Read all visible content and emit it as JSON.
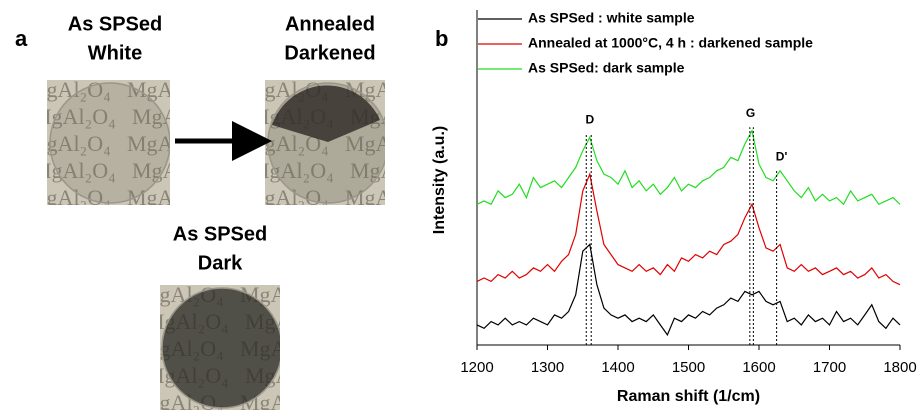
{
  "panel_a": {
    "label": "a",
    "samples": [
      {
        "lines": [
          "As SPSed",
          "White"
        ]
      },
      {
        "lines": [
          "Annealed",
          "Darkened"
        ]
      },
      {
        "lines": [
          "As SPSed",
          "Dark"
        ]
      }
    ],
    "photo_text": "MgAl₂O₄"
  },
  "chart_data": {
    "type": "line",
    "panel_label": "b",
    "xlabel": "Raman shift (1/cm)",
    "ylabel": "Intensity (a.u.)",
    "x": [
      1200,
      1210,
      1220,
      1230,
      1240,
      1250,
      1260,
      1270,
      1280,
      1290,
      1300,
      1310,
      1320,
      1330,
      1340,
      1350,
      1360,
      1370,
      1380,
      1390,
      1400,
      1410,
      1420,
      1430,
      1440,
      1450,
      1460,
      1470,
      1480,
      1490,
      1500,
      1510,
      1520,
      1530,
      1540,
      1550,
      1560,
      1570,
      1580,
      1590,
      1600,
      1610,
      1620,
      1630,
      1640,
      1650,
      1660,
      1670,
      1680,
      1690,
      1700,
      1710,
      1720,
      1730,
      1740,
      1750,
      1760,
      1770,
      1780,
      1790,
      1800
    ],
    "series": [
      {
        "name": "As SPSed : white sample",
        "color": "#000000",
        "values": [
          6,
          5,
          7,
          6,
          8,
          6,
          7,
          6,
          8,
          7,
          6,
          9,
          8,
          10,
          15,
          28,
          30,
          18,
          11,
          9,
          8,
          9,
          7,
          8,
          7,
          9,
          6,
          3,
          8,
          7,
          9,
          8,
          10,
          9,
          11,
          12,
          14,
          13,
          16,
          15,
          16,
          13,
          12,
          13,
          7,
          8,
          6,
          9,
          7,
          8,
          6,
          10,
          7,
          8,
          6,
          9,
          12,
          7,
          5,
          8,
          6
        ]
      },
      {
        "name": "Annealed at 1000°C, 4 h : darkened sample",
        "color": "#e00000",
        "values": [
          19,
          20,
          19,
          21,
          20,
          22,
          20,
          21,
          23,
          22,
          24,
          22,
          25,
          27,
          33,
          46,
          51,
          40,
          30,
          27,
          24,
          23,
          22,
          24,
          22,
          23,
          21,
          24,
          22,
          26,
          25,
          27,
          26,
          28,
          27,
          30,
          31,
          33,
          38,
          42,
          35,
          29,
          28,
          30,
          23,
          22,
          24,
          22,
          23,
          21,
          22,
          23,
          21,
          22,
          20,
          21,
          23,
          20,
          21,
          19,
          18
        ]
      },
      {
        "name": "As SPSed: dark sample",
        "color": "#22dd22",
        "values": [
          42,
          43,
          42,
          46,
          44,
          45,
          48,
          44,
          50,
          47,
          48,
          49,
          47,
          50,
          53,
          58,
          62,
          55,
          51,
          50,
          48,
          52,
          47,
          49,
          46,
          48,
          45,
          47,
          50,
          46,
          48,
          47,
          49,
          50,
          52,
          53,
          56,
          55,
          60,
          64,
          54,
          50,
          49,
          52,
          49,
          46,
          44,
          47,
          43,
          45,
          43,
          44,
          42,
          46,
          43,
          44,
          45,
          42,
          43,
          44,
          42
        ]
      }
    ],
    "xlim": [
      1200,
      1800
    ],
    "xticks": [
      1200,
      1300,
      1400,
      1500,
      1600,
      1700,
      1800
    ],
    "ylim": [
      0,
      100
    ],
    "annotations": [
      {
        "text": "D",
        "x": 1360,
        "y": 67
      },
      {
        "text": "G",
        "x": 1588,
        "y": 69
      },
      {
        "text": "D'",
        "x": 1632,
        "y": 56
      }
    ],
    "vlines": [
      {
        "x": 1355,
        "y": 63
      },
      {
        "x": 1362,
        "y": 63
      },
      {
        "x": 1587,
        "y": 65
      },
      {
        "x": 1592,
        "y": 65
      },
      {
        "x": 1625,
        "y": 52
      }
    ]
  }
}
